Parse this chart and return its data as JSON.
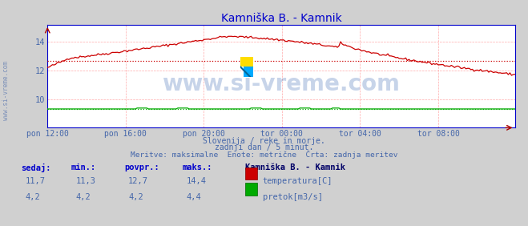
{
  "title": "Kamniška B. - Kamnik",
  "title_color": "#0000cc",
  "bg_color": "#d0d0d0",
  "plot_bg_color": "#ffffff",
  "grid_color": "#ffaaaa",
  "xlabel_color": "#4466aa",
  "ylabel_color": "#4466aa",
  "watermark_text": "www.si-vreme.com",
  "watermark_color": "#2255aa",
  "watermark_alpha": 0.25,
  "subtitle_lines": [
    "Slovenija / reke in morje.",
    "zadnji dan / 5 minut.",
    "Meritve: maksimalne  Enote: metrične  Črta: zadnja meritev"
  ],
  "subtitle_color": "#4466aa",
  "xticklabels": [
    "pon 12:00",
    "pon 16:00",
    "pon 20:00",
    "tor 00:00",
    "tor 04:00",
    "tor 08:00"
  ],
  "xtick_positions": [
    0,
    48,
    96,
    144,
    192,
    240
  ],
  "ylim": [
    8.0,
    15.2
  ],
  "yticks": [
    10,
    12,
    14
  ],
  "temp_color": "#cc0000",
  "flow_color": "#00aa00",
  "avg_temp": 12.7,
  "avg_flow": 4.2,
  "total_points": 288,
  "legend_title": "Kamniška B. - Kamnik",
  "legend_title_color": "#000066",
  "legend_color": "#4466aa",
  "table_headers": [
    "sedaj:",
    "min.:",
    "povpr.:",
    "maks.:"
  ],
  "table_values_temp": [
    "11,7",
    "11,3",
    "12,7",
    "14,4"
  ],
  "table_values_flow": [
    "4,2",
    "4,2",
    "4,2",
    "4,4"
  ],
  "table_color": "#0000cc",
  "table_value_color": "#4466aa",
  "arrow_color": "#aa0000",
  "axis_color": "#0000cc",
  "side_text": "www.si-vreme.com",
  "side_text_color": "#4466aa"
}
